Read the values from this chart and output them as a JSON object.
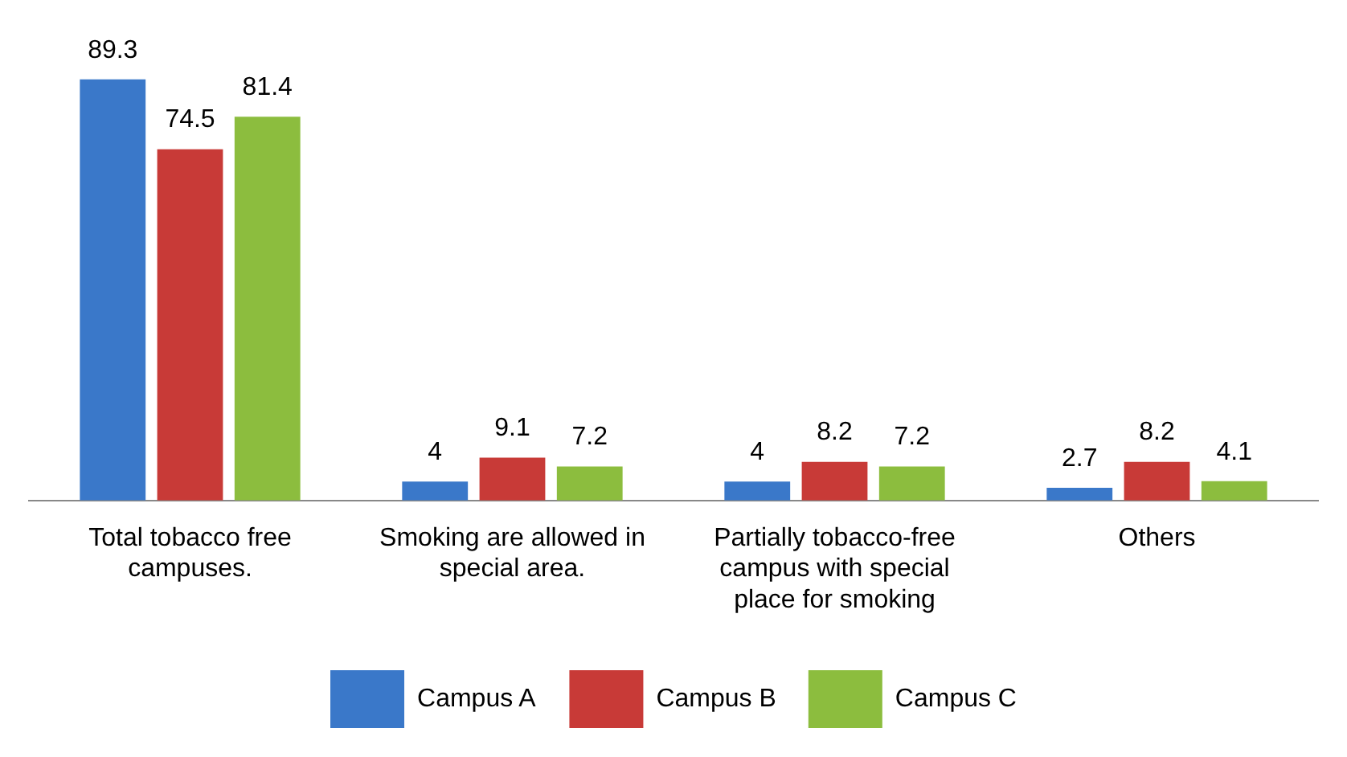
{
  "chart_data": {
    "type": "bar",
    "categories": [
      "Total tobacco free campuses.",
      "Smoking are allowed in special area.",
      "Partially tobacco-free campus with special place for smoking",
      "Others"
    ],
    "series": [
      {
        "name": "Campus A",
        "color": "#3a78c9",
        "values": [
          89.3,
          4,
          4,
          2.7
        ]
      },
      {
        "name": "Campus B",
        "color": "#c83a37",
        "values": [
          74.5,
          9.1,
          8.2,
          8.2
        ]
      },
      {
        "name": "Campus C",
        "color": "#8cbd3e",
        "values": [
          81.4,
          7.2,
          7.2,
          4.1
        ]
      }
    ],
    "data_labels": true,
    "grid": false,
    "legend": "bottom",
    "tick_labels": "x"
  }
}
